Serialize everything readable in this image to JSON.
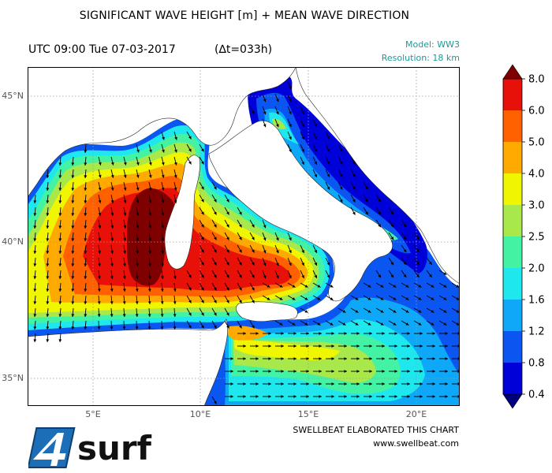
{
  "header": {
    "title": "SIGNIFICANT WAVE HEIGHT [m] + MEAN WAVE DIRECTION",
    "utc": "UTC 09:00 Tue 07-03-2017",
    "delta": "(∆t=033h)",
    "model": "Model: WW3",
    "resolution": "Resolution: 18 km"
  },
  "map": {
    "lat_ticks": [
      "45°N",
      "40°N",
      "35°N"
    ],
    "lon_ticks": [
      "5°E",
      "10°E",
      "15°E",
      "20°E"
    ],
    "colors": {
      "land": "#ffffff",
      "graticule": "#9a9a9a",
      "arrow": "#000000"
    }
  },
  "colorbar": {
    "labels": [
      "8.0",
      "6.0",
      "5.0",
      "4.0",
      "3.0",
      "2.5",
      "2.0",
      "1.6",
      "1.2",
      "0.8",
      "0.4"
    ],
    "colors": [
      "#7f0000",
      "#e8110a",
      "#ff6000",
      "#ffaa00",
      "#f0f500",
      "#a8e84a",
      "#44f2a4",
      "#1ee8ee",
      "#0fa7f7",
      "#0b56f0",
      "#0000d8",
      "#00007f"
    ]
  },
  "footer": {
    "credit": "SWELLBEAT ELABORATED THIS CHART",
    "website": "www.swellbeat.com",
    "logo_text": "4surf"
  }
}
